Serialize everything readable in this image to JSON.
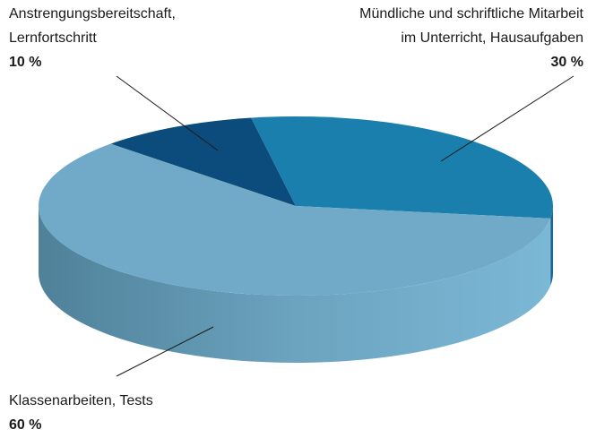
{
  "chart_data": {
    "type": "pie",
    "categories": [
      "Anstrengungsbereitschaft,\nLernfortschritt",
      "Mündliche und schriftliche Mitarbeit\nim Unterricht, Hausaufgaben",
      "Klassenarbeiten, Tests"
    ],
    "values": [
      10,
      30,
      60
    ],
    "value_labels": [
      "10 %",
      "30 %",
      "60 %"
    ],
    "colors": [
      "#0b4c7c",
      "#1b7fad",
      "#70aac8"
    ]
  }
}
